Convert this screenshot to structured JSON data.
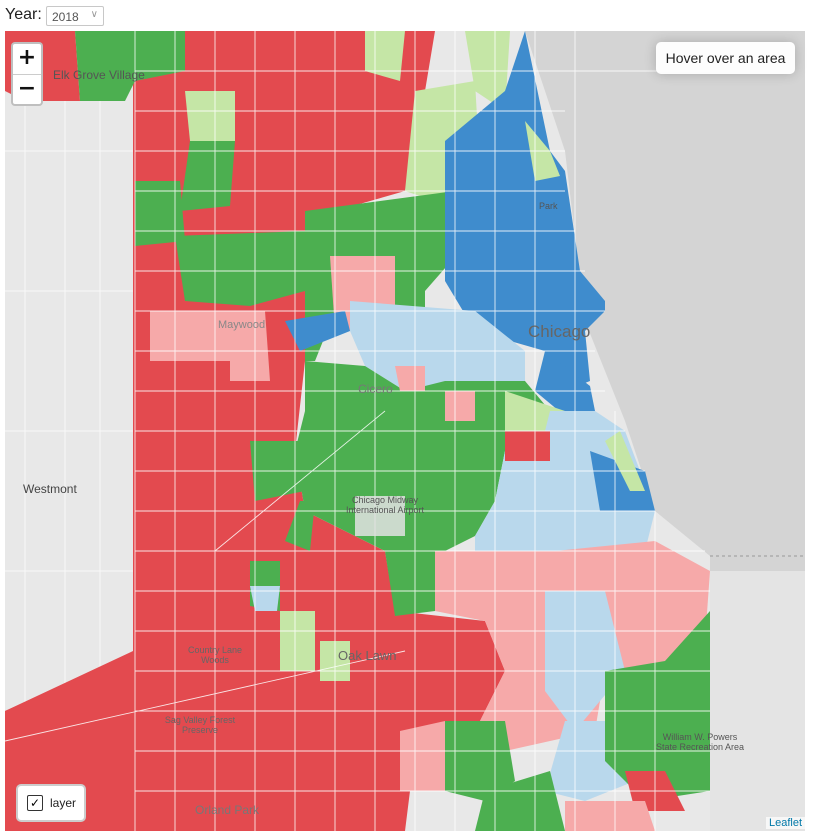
{
  "year_control": {
    "label": "Year:",
    "selected": "2018"
  },
  "info_box": {
    "text": "Hover over an area"
  },
  "zoom": {
    "in": "+",
    "out": "−"
  },
  "layer_control": {
    "label": "layer",
    "checked": true
  },
  "attribution": "Leaflet",
  "place_labels": {
    "elk_grove": "Elk Grove Village",
    "westmont": "Westmont",
    "maywood": "Maywood",
    "chicago": "Chicago",
    "midway": "Chicago Midway International Airport",
    "oak_lawn": "Oak Lawn",
    "country_lane": "Country Lane Woods",
    "sag_valley": "Sag Valley Forest Preserve",
    "powers": "William W. Powers State Recreation Area",
    "park": "Park",
    "cicero": "Cicero",
    "orland": "Orland Park"
  },
  "colors": {
    "dark_red": "#e34a4f",
    "light_red": "#f6a9a9",
    "dark_green": "#4caf50",
    "light_green": "#c5e6a6",
    "dark_blue": "#3f8ccd",
    "light_blue": "#b9d8ec",
    "base": "#e6e6e6",
    "water": "#d4d4d4"
  }
}
